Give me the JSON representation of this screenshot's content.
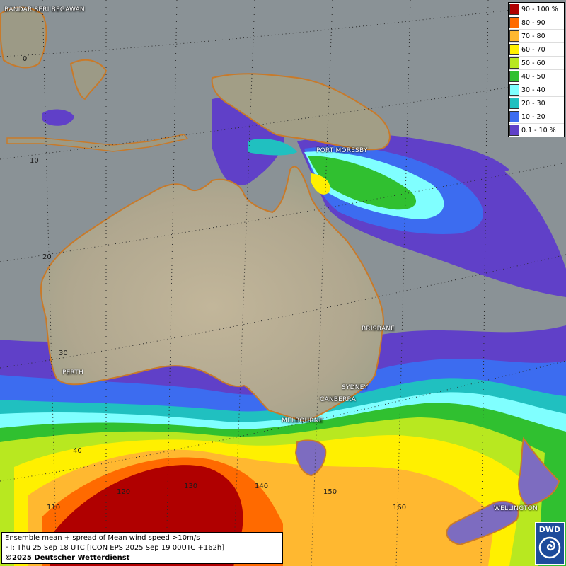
{
  "legend": {
    "items": [
      {
        "label": "90 - 100 %",
        "color": "#b00000"
      },
      {
        "label": "80 - 90",
        "color": "#ff6a00"
      },
      {
        "label": "70 - 80",
        "color": "#ffb830"
      },
      {
        "label": "60 - 70",
        "color": "#fff000"
      },
      {
        "label": "50 - 60",
        "color": "#b8e820"
      },
      {
        "label": "40 - 50",
        "color": "#30c030"
      },
      {
        "label": "30 - 40",
        "color": "#80ffff"
      },
      {
        "label": "20 - 30",
        "color": "#20c0c0"
      },
      {
        "label": "10 - 20",
        "color": "#3c6cf0"
      },
      {
        "label": "0.1 - 10 %",
        "color": "#6040c8"
      }
    ]
  },
  "cities": [
    {
      "name": "BANDAR SERI BEGAWAN"
    },
    {
      "name": "PORT MORESBY"
    },
    {
      "name": "BRISBANE"
    },
    {
      "name": "PERTH"
    },
    {
      "name": "SYDNEY"
    },
    {
      "name": "CANBERRA"
    },
    {
      "name": "MELBOURNE"
    },
    {
      "name": "WELLINGTON"
    }
  ],
  "latitude_labels": [
    "0",
    "10",
    "20",
    "30",
    "40"
  ],
  "longitude_labels": [
    "110",
    "120",
    "130",
    "140",
    "150",
    "160"
  ],
  "info": {
    "line1": "Ensemble mean + spread of Mean wind speed >10m/s",
    "line2": "FT: Thu 25 Sep 18 UTC [ICON EPS 2025 Sep 19 00UTC +162h]",
    "line3": "©2025 Deutscher Wetterdienst"
  },
  "logo": {
    "text": "DWD"
  },
  "colors": {
    "ocean": "#8a9296",
    "land": "#b7ae95",
    "coastline": "#c87a2a"
  }
}
